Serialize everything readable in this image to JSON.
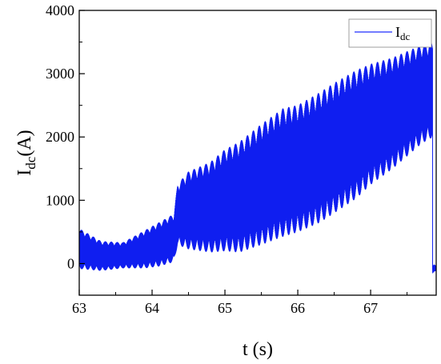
{
  "chart_data": {
    "type": "line",
    "xlabel": "t (s)",
    "ylabel_main": "I",
    "ylabel_sub": "dc",
    "ylabel_tail": "(A)",
    "xlim": [
      63,
      67.9
    ],
    "ylim": [
      -500,
      4000
    ],
    "x_ticks": [
      63,
      64,
      65,
      66,
      67
    ],
    "x_tick_labels": [
      "63",
      "64",
      "65",
      "66",
      "67"
    ],
    "y_ticks": [
      0,
      1000,
      2000,
      3000,
      4000
    ],
    "y_tick_labels": [
      "0",
      "1000",
      "2000",
      "3000",
      "4000"
    ],
    "legend": {
      "position": "top-right",
      "main": "I",
      "sub": "dc"
    },
    "series": [
      {
        "color": "#0f1ef0",
        "envelope_t": [
          63.0,
          63.3,
          63.6,
          63.9,
          64.1,
          64.3,
          64.35,
          64.5,
          64.8,
          65.0,
          65.2,
          65.5,
          65.8,
          66.0,
          66.3,
          66.5,
          66.8,
          67.0,
          67.3,
          67.5,
          67.7,
          67.85
        ],
        "envelope_max": [
          550,
          350,
          330,
          520,
          650,
          780,
          1250,
          1450,
          1600,
          1800,
          1920,
          2200,
          2450,
          2500,
          2700,
          2850,
          3050,
          3150,
          3250,
          3350,
          3450,
          3500
        ],
        "envelope_min": [
          -80,
          -110,
          -70,
          -70,
          -40,
          30,
          300,
          230,
          180,
          200,
          180,
          300,
          430,
          500,
          650,
          800,
          1030,
          1250,
          1500,
          1700,
          1900,
          2000
        ],
        "tail_t": [
          67.85,
          67.87,
          67.9
        ],
        "tail_max": [
          -50,
          -20,
          -40
        ],
        "tail_min": [
          -150,
          -120,
          -110
        ]
      }
    ]
  }
}
